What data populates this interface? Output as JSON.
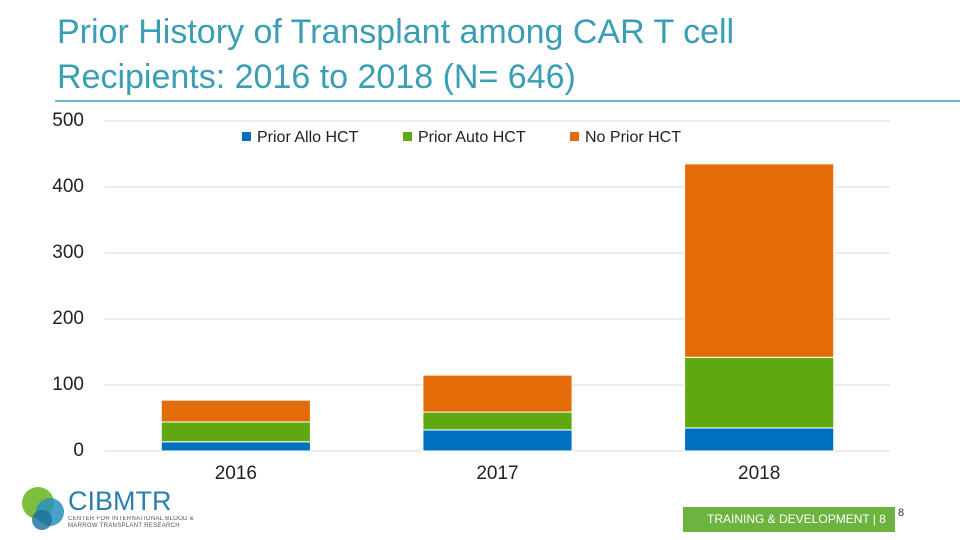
{
  "chart_data": {
    "type": "stacked-bar",
    "title": "Prior History of Transplant among CAR T cell Recipients: 2016 to 2018 (N= 646)",
    "categories": [
      "2016",
      "2017",
      "2018"
    ],
    "series": [
      {
        "name": "Prior Allo HCT",
        "color": "#0070c0",
        "values": [
          14,
          32,
          35
        ]
      },
      {
        "name": "Prior Auto HCT",
        "color": "#5fa80f",
        "values": [
          30,
          27,
          107
        ]
      },
      {
        "name": "No Prior HCT",
        "color": "#e36c09",
        "values": [
          33,
          56,
          293
        ]
      }
    ],
    "ylim": [
      0,
      500
    ],
    "yticks": [
      0,
      100,
      200,
      300,
      400,
      500
    ],
    "grid": true,
    "legend": "top"
  },
  "logo": {
    "name": "CIBMTR",
    "tagline": "CENTER FOR INTERNATIONAL BLOOD & MARROW TRANSPLANT RESEARCH"
  },
  "footer": {
    "text": "TRAINING & DEVELOPMENT | 8",
    "page": "8"
  }
}
